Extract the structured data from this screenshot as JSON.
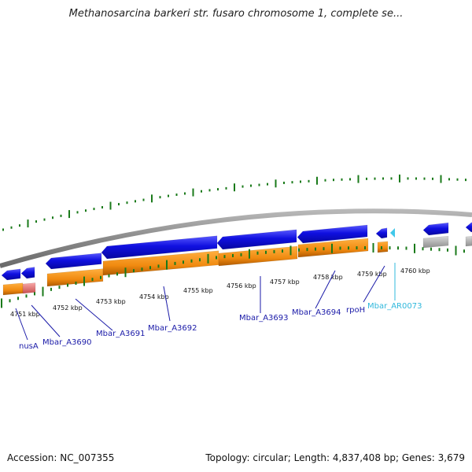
{
  "title": "Methanosarcina barkeri str. fusaro chromosome 1, complete se...",
  "footer": {
    "accession": "Accession: NC_007355",
    "summary": "Topology: circular; Length: 4,837,408 bp; Genes: 3,679"
  },
  "colors": {
    "gene_blue": "#1010e0",
    "gene_orange": "#f08a10",
    "rrna_pink": "#e87878",
    "trna_cyan": "#40c8ea",
    "feature_gray": "#b0b0b0",
    "tick_green": "#1a7a1a",
    "backbone_gray": "#8a8a8a",
    "label_blue": "#1a1aa8",
    "label_cyan": "#30b8dc"
  },
  "kbp_ticks": [
    "4751 kbp",
    "4752 kbp",
    "4753 kbp",
    "4754 kbp",
    "4755 kbp",
    "4756 kbp",
    "4757 kbp",
    "4758 kbp",
    "4759 kbp",
    "4760 kbp"
  ],
  "gene_labels": [
    {
      "text": "nusA",
      "color": "label_blue"
    },
    {
      "text": "Mbar_A3690",
      "color": "label_blue"
    },
    {
      "text": "Mbar_A3691",
      "color": "label_blue"
    },
    {
      "text": "Mbar_A3692",
      "color": "label_blue"
    },
    {
      "text": "Mbar_A3693",
      "color": "label_blue"
    },
    {
      "text": "Mbar_A3694",
      "color": "label_blue"
    },
    {
      "text": "rpoH",
      "color": "label_blue"
    },
    {
      "text": "Mbar_AR0073",
      "color": "label_cyan"
    }
  ]
}
